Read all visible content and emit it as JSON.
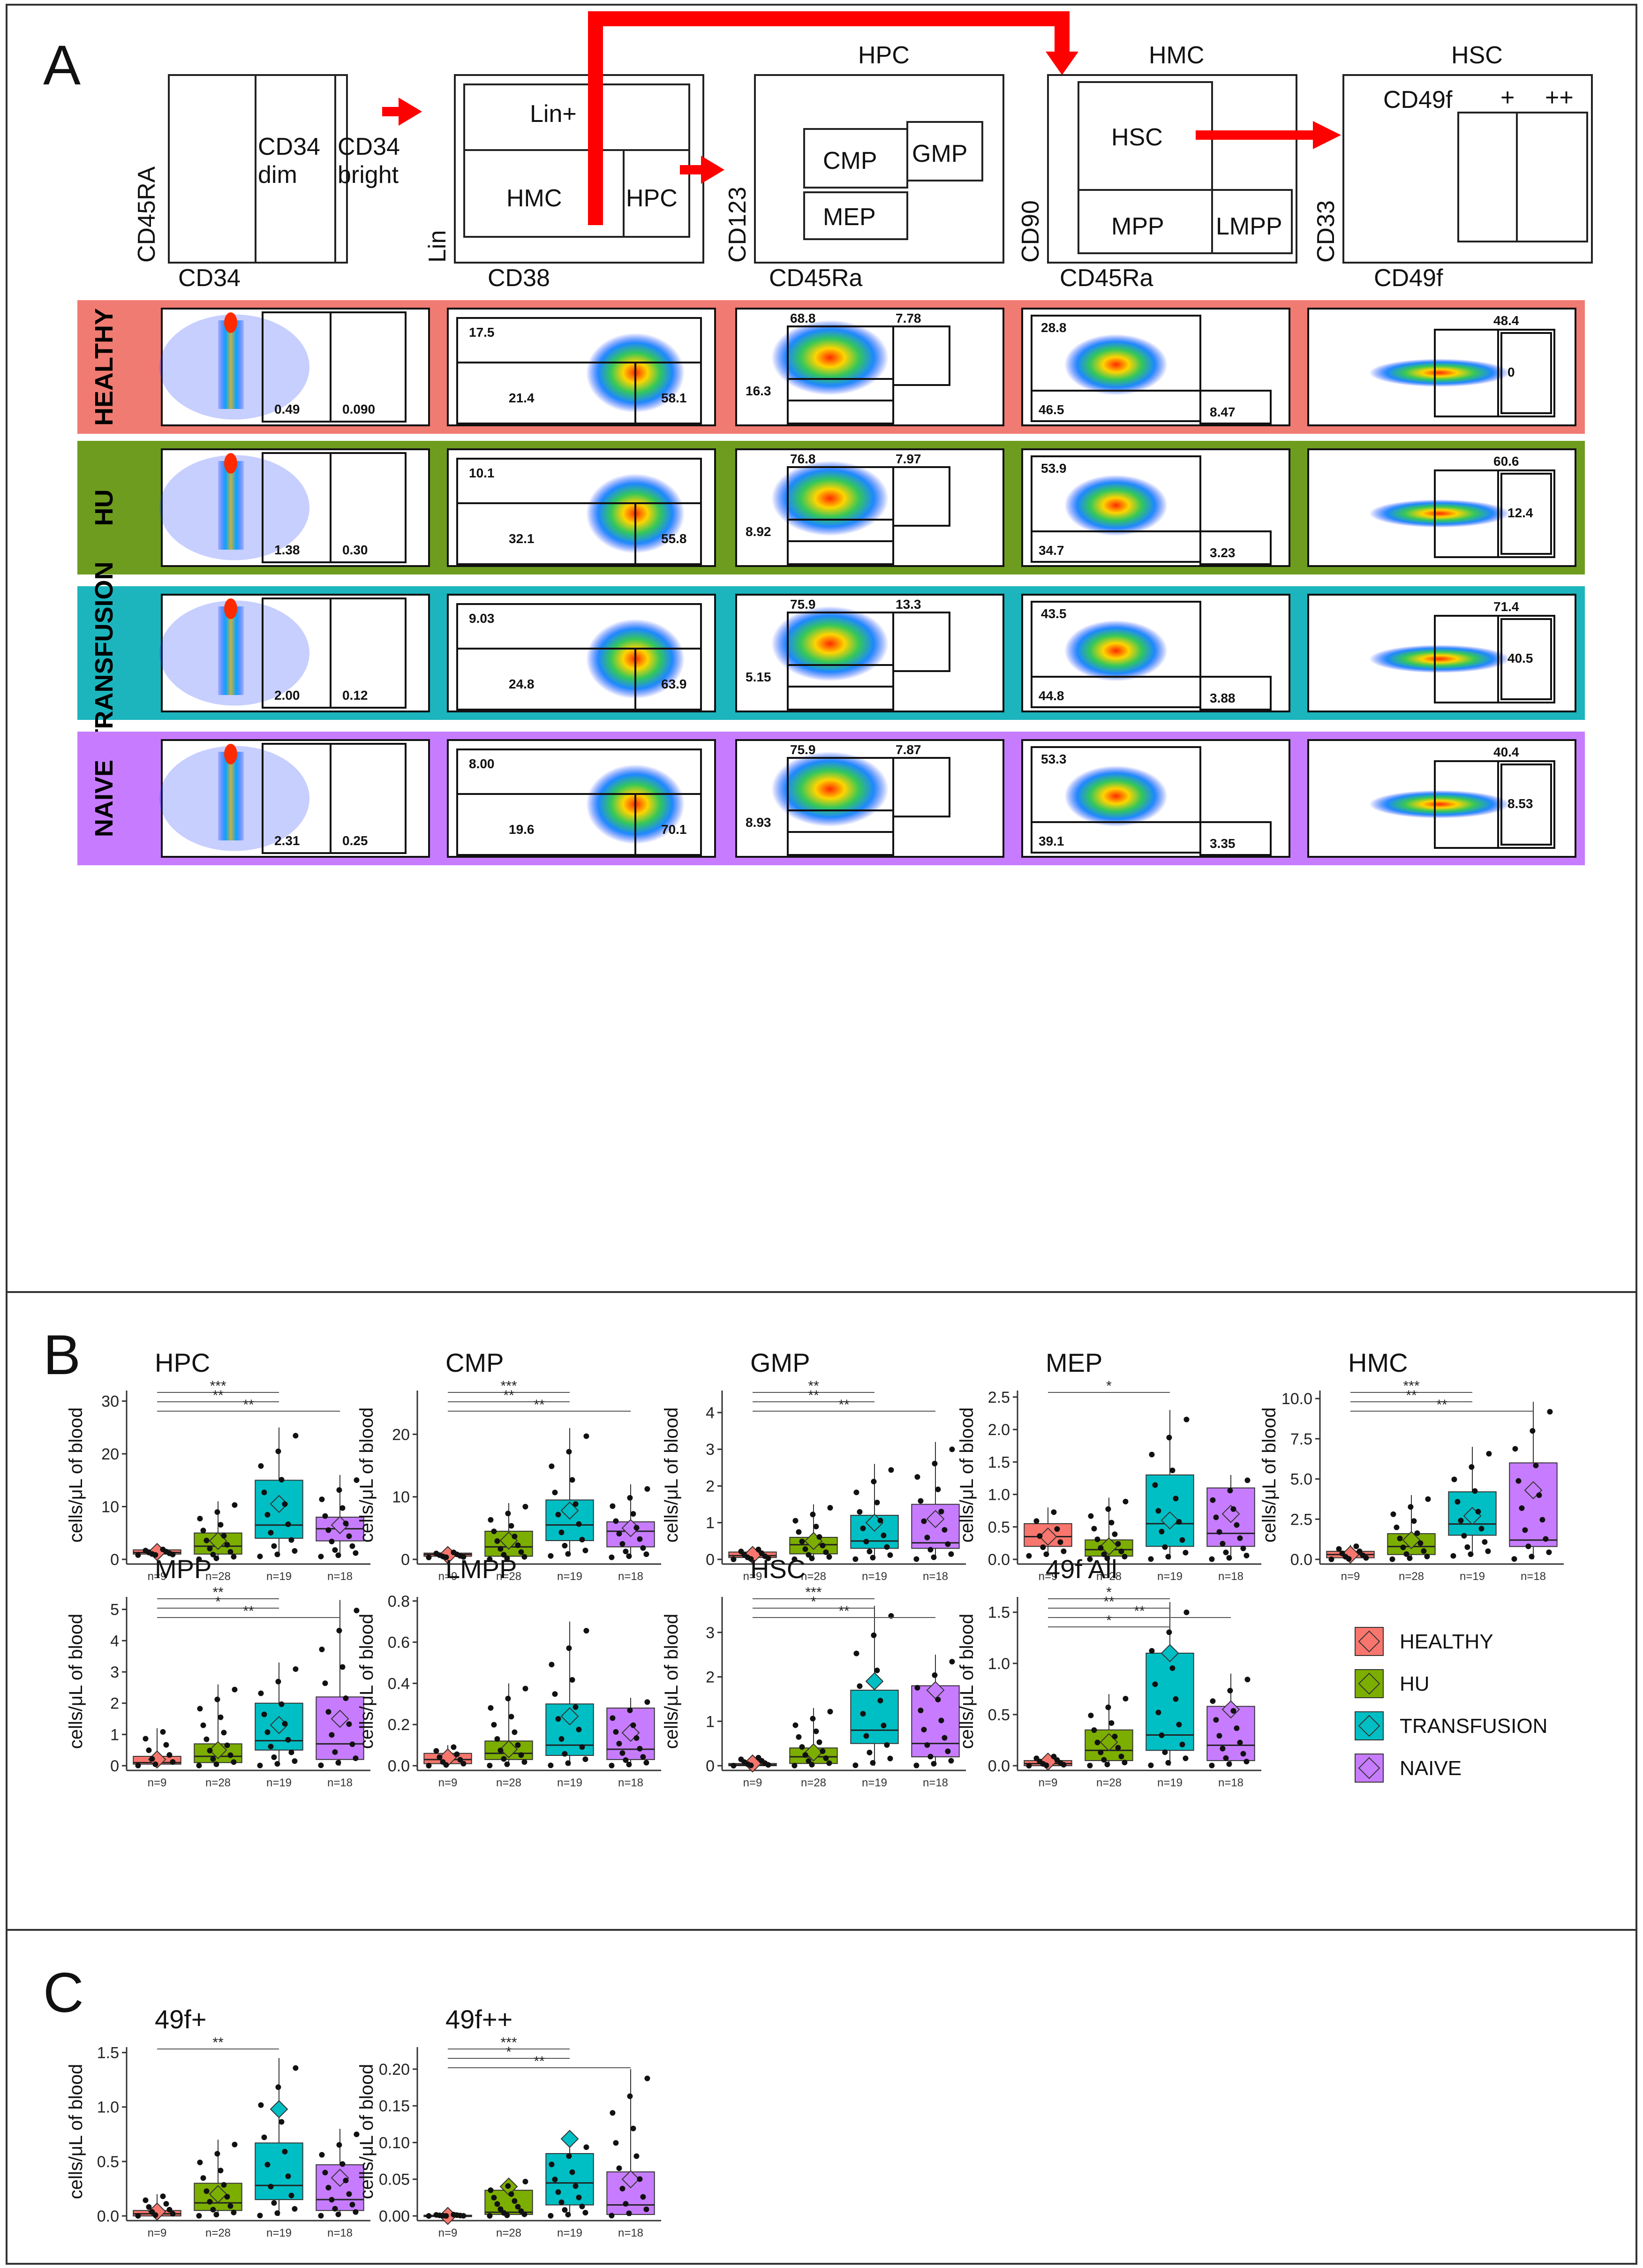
{
  "panels": {
    "a": "A",
    "b": "B",
    "c": "C"
  },
  "schematic": {
    "gate1": {
      "xlabel": "CD34",
      "ylabel": "CD45RA",
      "regions": [
        "CD34\ndim",
        "CD34\nbright"
      ]
    },
    "gate2": {
      "xlabel": "CD38",
      "ylabel": "Lin",
      "regions": [
        "Lin+",
        "HMC",
        "HPC"
      ]
    },
    "gate3": {
      "title": "HPC",
      "xlabel": "CD45Ra",
      "ylabel": "CD123",
      "regions": [
        "CMP",
        "GMP",
        "MEP"
      ]
    },
    "gate4": {
      "title": "HMC",
      "xlabel": "CD45Ra",
      "ylabel": "CD90",
      "regions": [
        "HSC",
        "MPP",
        "LMPP"
      ]
    },
    "gate5": {
      "title": "HSC",
      "xlabel": "CD49f",
      "ylabel": "CD33",
      "regions": [
        "CD49f",
        "+",
        "++"
      ]
    }
  },
  "flow_rows": [
    {
      "label": "HEALTHY",
      "color": "#F07B72",
      "g1": [
        "0.49",
        "0.090"
      ],
      "g2": [
        "17.5",
        "21.4",
        "58.1"
      ],
      "g3": [
        "68.8",
        "7.78",
        "16.3"
      ],
      "g4": [
        "28.8",
        "46.5",
        "8.47"
      ],
      "g5": [
        "48.4",
        "0"
      ]
    },
    {
      "label": "HU",
      "color": "#6E9C1E",
      "g1": [
        "1.38",
        "0.30"
      ],
      "g2": [
        "10.1",
        "32.1",
        "55.8"
      ],
      "g3": [
        "76.8",
        "7.97",
        "8.92"
      ],
      "g4": [
        "53.9",
        "34.7",
        "3.23"
      ],
      "g5": [
        "60.6",
        "12.4"
      ]
    },
    {
      "label": "TRANSFUSION",
      "color": "#1CB5BD",
      "g1": [
        "2.00",
        "0.12"
      ],
      "g2": [
        "9.03",
        "24.8",
        "63.9"
      ],
      "g3": [
        "75.9",
        "13.3",
        "5.15"
      ],
      "g4": [
        "43.5",
        "44.8",
        "3.88"
      ],
      "g5": [
        "71.4",
        "40.5"
      ]
    },
    {
      "label": "NAIVE",
      "color": "#C77CFF",
      "g1": [
        "2.31",
        "0.25"
      ],
      "g2": [
        "8.00",
        "19.6",
        "70.1"
      ],
      "g3": [
        "75.9",
        "7.87",
        "8.93"
      ],
      "g4": [
        "53.3",
        "39.1",
        "3.35"
      ],
      "g5": [
        "40.4",
        "8.53"
      ]
    }
  ],
  "legend": {
    "items": [
      {
        "label": "HEALTHY",
        "color": "#F8766D"
      },
      {
        "label": "HU",
        "color": "#7CAE00"
      },
      {
        "label": "TRANSFUSION",
        "color": "#00BFC4"
      },
      {
        "label": "NAIVE",
        "color": "#C77CFF"
      }
    ]
  },
  "chart_data": [
    {
      "type": "box",
      "title": "HPC",
      "ylabel": "cells/μL of blood",
      "ylim": [
        0,
        32
      ],
      "yticks": [
        "0",
        "10",
        "20",
        "30"
      ],
      "groups": [
        "HEALTHY",
        "HU",
        "TRANSFUSION",
        "NAIVE"
      ],
      "n_labels": [
        "n=9",
        "n=28",
        "n=19",
        "n=18"
      ],
      "q1": [
        1.0,
        1.0,
        4.0,
        3.5
      ],
      "median": [
        1.3,
        2.5,
        6.5,
        5.8
      ],
      "q3": [
        1.8,
        5.0,
        15.0,
        8.0
      ],
      "whisker_low": [
        0.8,
        0.0,
        0.5,
        0.5
      ],
      "whisker_high": [
        2.0,
        11.0,
        25.0,
        16.0
      ],
      "mean": [
        1.4,
        3.5,
        10.5,
        6.5
      ],
      "significance": [
        "***",
        "**",
        "**"
      ]
    },
    {
      "type": "box",
      "title": "CMP",
      "ylabel": "cells/μL of blood",
      "ylim": [
        0,
        27
      ],
      "yticks": [
        "0",
        "10",
        "20"
      ],
      "groups": [
        "HEALTHY",
        "HU",
        "TRANSFUSION",
        "NAIVE"
      ],
      "n_labels": [
        "n=9",
        "n=28",
        "n=19",
        "n=18"
      ],
      "q1": [
        0.5,
        0.5,
        3.0,
        2.0
      ],
      "median": [
        0.8,
        2.0,
        5.5,
        4.5
      ],
      "q3": [
        1.0,
        4.5,
        9.5,
        6.0
      ],
      "whisker_low": [
        0.3,
        0.0,
        0.5,
        0.3
      ],
      "whisker_high": [
        1.2,
        9.0,
        21.0,
        12.0
      ],
      "mean": [
        0.7,
        3.0,
        7.8,
        5.0
      ],
      "significance": [
        "***",
        "**",
        "**"
      ]
    },
    {
      "type": "box",
      "title": "GMP",
      "ylabel": "cells/μL of blood",
      "ylim": [
        0,
        4.6
      ],
      "yticks": [
        "0",
        "1",
        "2",
        "3",
        "4"
      ],
      "groups": [
        "HEALTHY",
        "HU",
        "TRANSFUSION",
        "NAIVE"
      ],
      "n_labels": [
        "n=9",
        "n=28",
        "n=19",
        "n=18"
      ],
      "q1": [
        0.05,
        0.15,
        0.3,
        0.3
      ],
      "median": [
        0.1,
        0.4,
        0.5,
        0.45
      ],
      "q3": [
        0.2,
        0.6,
        1.2,
        1.5
      ],
      "whisker_low": [
        0.0,
        0.0,
        0.0,
        0.0
      ],
      "whisker_high": [
        0.3,
        1.5,
        2.6,
        3.2
      ],
      "mean": [
        0.12,
        0.5,
        1.0,
        1.1
      ],
      "significance": [
        "**",
        "**",
        "**"
      ]
    },
    {
      "type": "box",
      "title": "MEP",
      "ylabel": "cells/μL of blood",
      "ylim": [
        0,
        2.6
      ],
      "yticks": [
        "0.0",
        "0.5",
        "1.0",
        "1.5",
        "2.0",
        "2.5"
      ],
      "groups": [
        "HEALTHY",
        "HU",
        "TRANSFUSION",
        "NAIVE"
      ],
      "n_labels": [
        "n=9",
        "n=28",
        "n=19",
        "n=18"
      ],
      "q1": [
        0.2,
        0.05,
        0.2,
        0.2
      ],
      "median": [
        0.35,
        0.15,
        0.55,
        0.4
      ],
      "q3": [
        0.55,
        0.3,
        1.3,
        1.1
      ],
      "whisker_low": [
        0.05,
        0.0,
        0.0,
        0.0
      ],
      "whisker_high": [
        0.8,
        0.95,
        2.3,
        1.3
      ],
      "mean": [
        0.35,
        0.2,
        0.6,
        0.7
      ],
      "significance": [
        "*"
      ]
    },
    {
      "type": "box",
      "title": "HMC",
      "ylabel": "cells/μL of blood",
      "ylim": [
        0,
        10.5
      ],
      "yticks": [
        "0.0",
        "2.5",
        "5.0",
        "7.5",
        "10.0"
      ],
      "groups": [
        "HEALTHY",
        "HU",
        "TRANSFUSION",
        "NAIVE"
      ],
      "n_labels": [
        "n=9",
        "n=28",
        "n=19",
        "n=18"
      ],
      "q1": [
        0.1,
        0.3,
        1.5,
        0.8
      ],
      "median": [
        0.3,
        0.8,
        2.2,
        1.2
      ],
      "q3": [
        0.5,
        1.6,
        4.2,
        6.0
      ],
      "whisker_low": [
        0.0,
        0.0,
        0.2,
        0.0
      ],
      "whisker_high": [
        0.9,
        4.0,
        7.0,
        9.8
      ],
      "mean": [
        0.3,
        1.2,
        2.7,
        4.3
      ],
      "significance": [
        "***",
        "**",
        "**"
      ]
    },
    {
      "type": "box",
      "title": "MPP",
      "ylabel": "cells/μL of blood",
      "ylim": [
        0,
        5.4
      ],
      "yticks": [
        "0",
        "1",
        "2",
        "3",
        "4",
        "5"
      ],
      "groups": [
        "HEALTHY",
        "HU",
        "TRANSFUSION",
        "NAIVE"
      ],
      "n_labels": [
        "n=9",
        "n=28",
        "n=19",
        "n=18"
      ],
      "q1": [
        0.05,
        0.1,
        0.5,
        0.2
      ],
      "median": [
        0.1,
        0.3,
        0.8,
        0.7
      ],
      "q3": [
        0.3,
        0.7,
        2.0,
        2.2
      ],
      "whisker_low": [
        0.0,
        0.0,
        0.0,
        0.0
      ],
      "whisker_high": [
        1.2,
        2.6,
        3.3,
        5.3
      ],
      "mean": [
        0.2,
        0.5,
        1.3,
        1.5
      ],
      "significance": [
        "**",
        "*",
        "**"
      ]
    },
    {
      "type": "box",
      "title": "LMPP",
      "ylabel": "cells/μL of blood",
      "ylim": [
        0,
        0.82
      ],
      "yticks": [
        "0.0",
        "0.2",
        "0.4",
        "0.6",
        "0.8"
      ],
      "groups": [
        "HEALTHY",
        "HU",
        "TRANSFUSION",
        "NAIVE"
      ],
      "n_labels": [
        "n=9",
        "n=28",
        "n=19",
        "n=18"
      ],
      "q1": [
        0.01,
        0.03,
        0.05,
        0.03
      ],
      "median": [
        0.03,
        0.06,
        0.1,
        0.08
      ],
      "q3": [
        0.06,
        0.12,
        0.3,
        0.28
      ],
      "whisker_low": [
        0.0,
        0.0,
        0.0,
        0.0
      ],
      "whisker_high": [
        0.1,
        0.4,
        0.7,
        0.33
      ],
      "mean": [
        0.04,
        0.08,
        0.24,
        0.16
      ],
      "significance": []
    },
    {
      "type": "box",
      "title": "HSC",
      "ylabel": "cells/μL of blood",
      "ylim": [
        0,
        3.8
      ],
      "yticks": [
        "0",
        "1",
        "2",
        "3"
      ],
      "groups": [
        "HEALTHY",
        "HU",
        "TRANSFUSION",
        "NAIVE"
      ],
      "n_labels": [
        "n=9",
        "n=28",
        "n=19",
        "n=18"
      ],
      "q1": [
        0.0,
        0.05,
        0.5,
        0.2
      ],
      "median": [
        0.02,
        0.2,
        0.8,
        0.5
      ],
      "q3": [
        0.05,
        0.4,
        1.7,
        1.8
      ],
      "whisker_low": [
        0.0,
        0.0,
        0.0,
        0.0
      ],
      "whisker_high": [
        0.2,
        1.3,
        3.6,
        2.5
      ],
      "mean": [
        0.05,
        0.3,
        1.9,
        1.7
      ],
      "significance": [
        "***",
        "*",
        "**"
      ]
    },
    {
      "type": "box",
      "title": "49f All",
      "ylabel": "cells/μL of blood",
      "ylim": [
        0,
        1.65
      ],
      "yticks": [
        "0.0",
        "0.5",
        "1.0",
        "1.5"
      ],
      "groups": [
        "HEALTHY",
        "HU",
        "TRANSFUSION",
        "NAIVE"
      ],
      "n_labels": [
        "n=9",
        "n=28",
        "n=19",
        "n=18"
      ],
      "q1": [
        0.0,
        0.05,
        0.15,
        0.05
      ],
      "median": [
        0.02,
        0.15,
        0.3,
        0.2
      ],
      "q3": [
        0.05,
        0.35,
        1.1,
        0.58
      ],
      "whisker_low": [
        0.0,
        0.0,
        0.0,
        0.0
      ],
      "whisker_high": [
        0.1,
        0.7,
        1.6,
        0.9
      ],
      "mean": [
        0.04,
        0.23,
        1.1,
        0.55
      ],
      "significance": [
        "*",
        "**",
        "**",
        "*"
      ]
    },
    {
      "type": "box",
      "title": "49f+",
      "ylabel": "cells/μL of blood",
      "ylim": [
        0,
        1.55
      ],
      "yticks": [
        "0.0",
        "0.5",
        "1.0",
        "1.5"
      ],
      "groups": [
        "HEALTHY",
        "HU",
        "TRANSFUSION",
        "NAIVE"
      ],
      "n_labels": [
        "n=9",
        "n=28",
        "n=19",
        "n=18"
      ],
      "q1": [
        0.0,
        0.05,
        0.15,
        0.05
      ],
      "median": [
        0.02,
        0.12,
        0.28,
        0.15
      ],
      "q3": [
        0.05,
        0.3,
        0.67,
        0.47
      ],
      "whisker_low": [
        0.0,
        0.0,
        0.0,
        0.0
      ],
      "whisker_high": [
        0.2,
        0.7,
        1.45,
        0.8
      ],
      "mean": [
        0.04,
        0.2,
        0.98,
        0.35
      ],
      "significance": [
        "**"
      ]
    },
    {
      "type": "box",
      "title": "49f++",
      "ylabel": "cells/μL of blood",
      "ylim": [
        0,
        0.23
      ],
      "yticks": [
        "0.00",
        "0.05",
        "0.10",
        "0.15",
        "0.20"
      ],
      "groups": [
        "HEALTHY",
        "HU",
        "TRANSFUSION",
        "NAIVE"
      ],
      "n_labels": [
        "n=9",
        "n=28",
        "n=19",
        "n=18"
      ],
      "q1": [
        0.0,
        0.002,
        0.015,
        0.002
      ],
      "median": [
        0.0,
        0.005,
        0.045,
        0.015
      ],
      "q3": [
        0.001,
        0.035,
        0.085,
        0.06
      ],
      "whisker_low": [
        0.0,
        0.0,
        0.0,
        0.0
      ],
      "whisker_high": [
        0.002,
        0.05,
        0.1,
        0.2
      ],
      "mean": [
        0.0,
        0.04,
        0.105,
        0.05
      ],
      "significance": [
        "***",
        "*",
        "**"
      ]
    }
  ]
}
